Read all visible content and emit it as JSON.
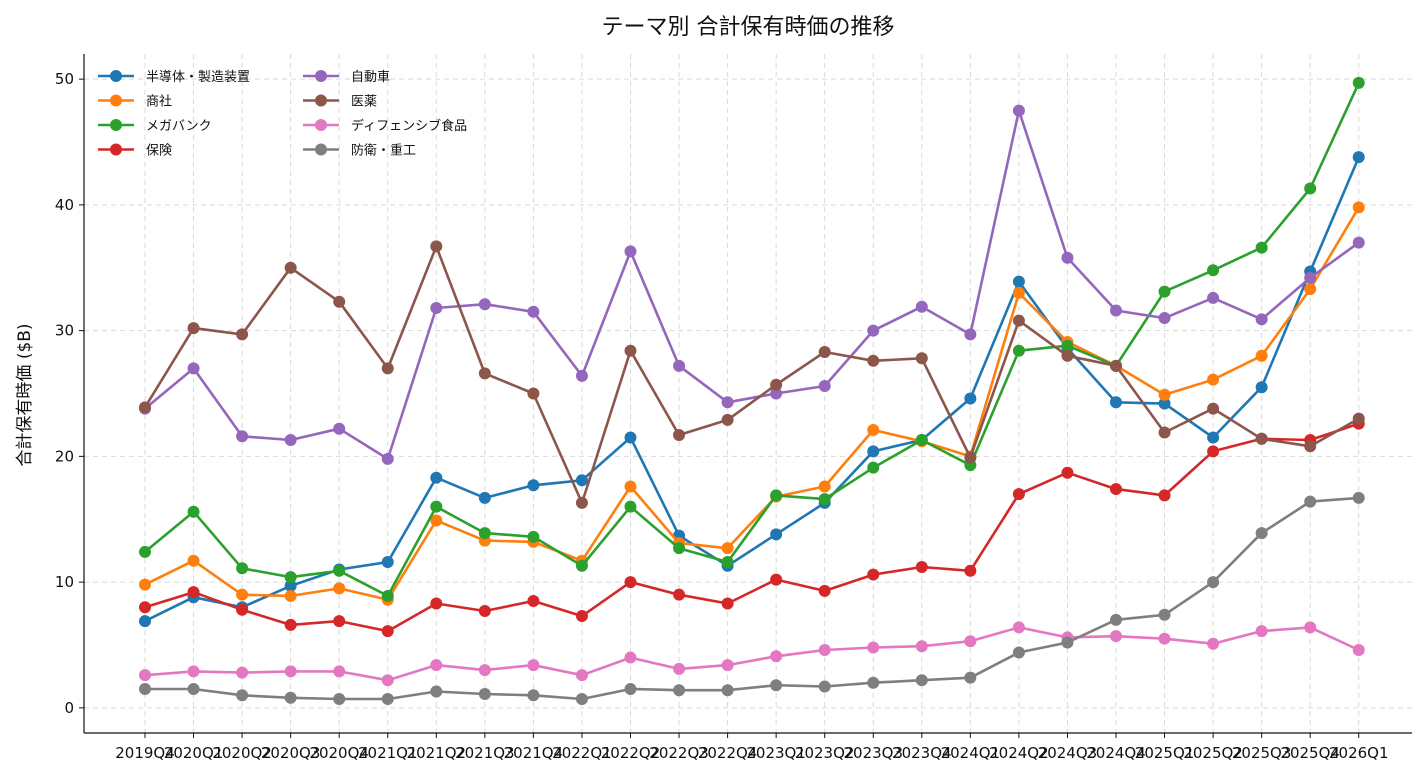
{
  "chart_data": {
    "type": "line",
    "title": "テーマ別 合計保有時価の推移",
    "xlabel": "",
    "ylabel": "合計保有時価 ($B)",
    "ylim": [
      -2,
      52
    ],
    "yticks": [
      0,
      10,
      20,
      30,
      40,
      50
    ],
    "grid": true,
    "legend_position": "top-left",
    "categories": [
      "2019Q4",
      "2020Q1",
      "2020Q2",
      "2020Q3",
      "2020Q4",
      "2021Q1",
      "2021Q2",
      "2021Q3",
      "2021Q4",
      "2022Q1",
      "2022Q2",
      "2022Q3",
      "2022Q4",
      "2023Q1",
      "2023Q2",
      "2023Q3",
      "2023Q4",
      "2024Q1",
      "2024Q2",
      "2024Q3",
      "2024Q4",
      "2025Q1",
      "2025Q2",
      "2025Q3",
      "2025Q4",
      "2026Q1"
    ],
    "series": [
      {
        "name": "半導体・製造装置",
        "color": "#1f77b4",
        "values": [
          6.9,
          8.8,
          8.0,
          9.7,
          11.0,
          11.6,
          18.3,
          16.7,
          17.7,
          18.1,
          21.5,
          13.7,
          11.3,
          13.8,
          16.3,
          20.4,
          21.3,
          24.6,
          33.9,
          28.6,
          24.3,
          24.2,
          21.5,
          25.5,
          34.7,
          43.8
        ]
      },
      {
        "name": "商社",
        "color": "#ff7f0e",
        "values": [
          9.8,
          11.7,
          9.0,
          8.9,
          9.5,
          8.6,
          14.9,
          13.3,
          13.2,
          11.7,
          17.6,
          13.1,
          12.7,
          16.8,
          17.6,
          22.1,
          21.2,
          20.0,
          33.0,
          29.1,
          27.2,
          24.9,
          26.1,
          28.0,
          33.3,
          39.8
        ]
      },
      {
        "name": "メガバンク",
        "color": "#2ca02c",
        "values": [
          12.4,
          15.6,
          11.1,
          10.4,
          10.9,
          8.9,
          16.0,
          13.9,
          13.6,
          11.3,
          16.0,
          12.7,
          11.6,
          16.9,
          16.6,
          19.1,
          21.3,
          19.3,
          28.4,
          28.8,
          27.2,
          33.1,
          34.8,
          36.6,
          41.3,
          49.7
        ]
      },
      {
        "name": "保険",
        "color": "#d62728",
        "values": [
          8.0,
          9.2,
          7.8,
          6.6,
          6.9,
          6.1,
          8.3,
          7.7,
          8.5,
          7.3,
          10.0,
          9.0,
          8.3,
          10.2,
          9.3,
          10.6,
          11.2,
          10.9,
          17.0,
          18.7,
          17.4,
          16.9,
          20.4,
          21.4,
          21.3,
          22.6
        ]
      },
      {
        "name": "自動車",
        "color": "#9467bd",
        "values": [
          23.8,
          27.0,
          21.6,
          21.3,
          22.2,
          19.8,
          31.8,
          32.1,
          31.5,
          26.4,
          36.3,
          27.2,
          24.3,
          25.0,
          25.6,
          30.0,
          31.9,
          29.7,
          47.5,
          35.8,
          31.6,
          31.0,
          32.6,
          30.9,
          34.2,
          37.0
        ]
      },
      {
        "name": "医薬",
        "color": "#8c564b",
        "values": [
          23.9,
          30.2,
          29.7,
          35.0,
          32.3,
          27.0,
          36.7,
          26.6,
          25.0,
          16.3,
          28.4,
          21.7,
          22.9,
          25.7,
          28.3,
          27.6,
          27.8,
          19.9,
          30.8,
          28.0,
          27.2,
          21.9,
          23.8,
          21.4,
          20.8,
          23.0
        ]
      },
      {
        "name": "ディフェンシブ食品",
        "color": "#e377c2",
        "values": [
          2.6,
          2.9,
          2.8,
          2.9,
          2.9,
          2.2,
          3.4,
          3.0,
          3.4,
          2.6,
          4.0,
          3.1,
          3.4,
          4.1,
          4.6,
          4.8,
          4.9,
          5.3,
          6.4,
          5.6,
          5.7,
          5.5,
          5.1,
          6.1,
          6.4,
          4.6
        ]
      },
      {
        "name": "防衛・重工",
        "color": "#7f7f7f",
        "values": [
          1.5,
          1.5,
          1.0,
          0.8,
          0.7,
          0.7,
          1.3,
          1.1,
          1.0,
          0.7,
          1.5,
          1.4,
          1.4,
          1.8,
          1.7,
          2.0,
          2.2,
          2.4,
          4.4,
          5.2,
          7.0,
          7.4,
          10.0,
          13.9,
          16.4,
          16.7
        ]
      }
    ]
  }
}
